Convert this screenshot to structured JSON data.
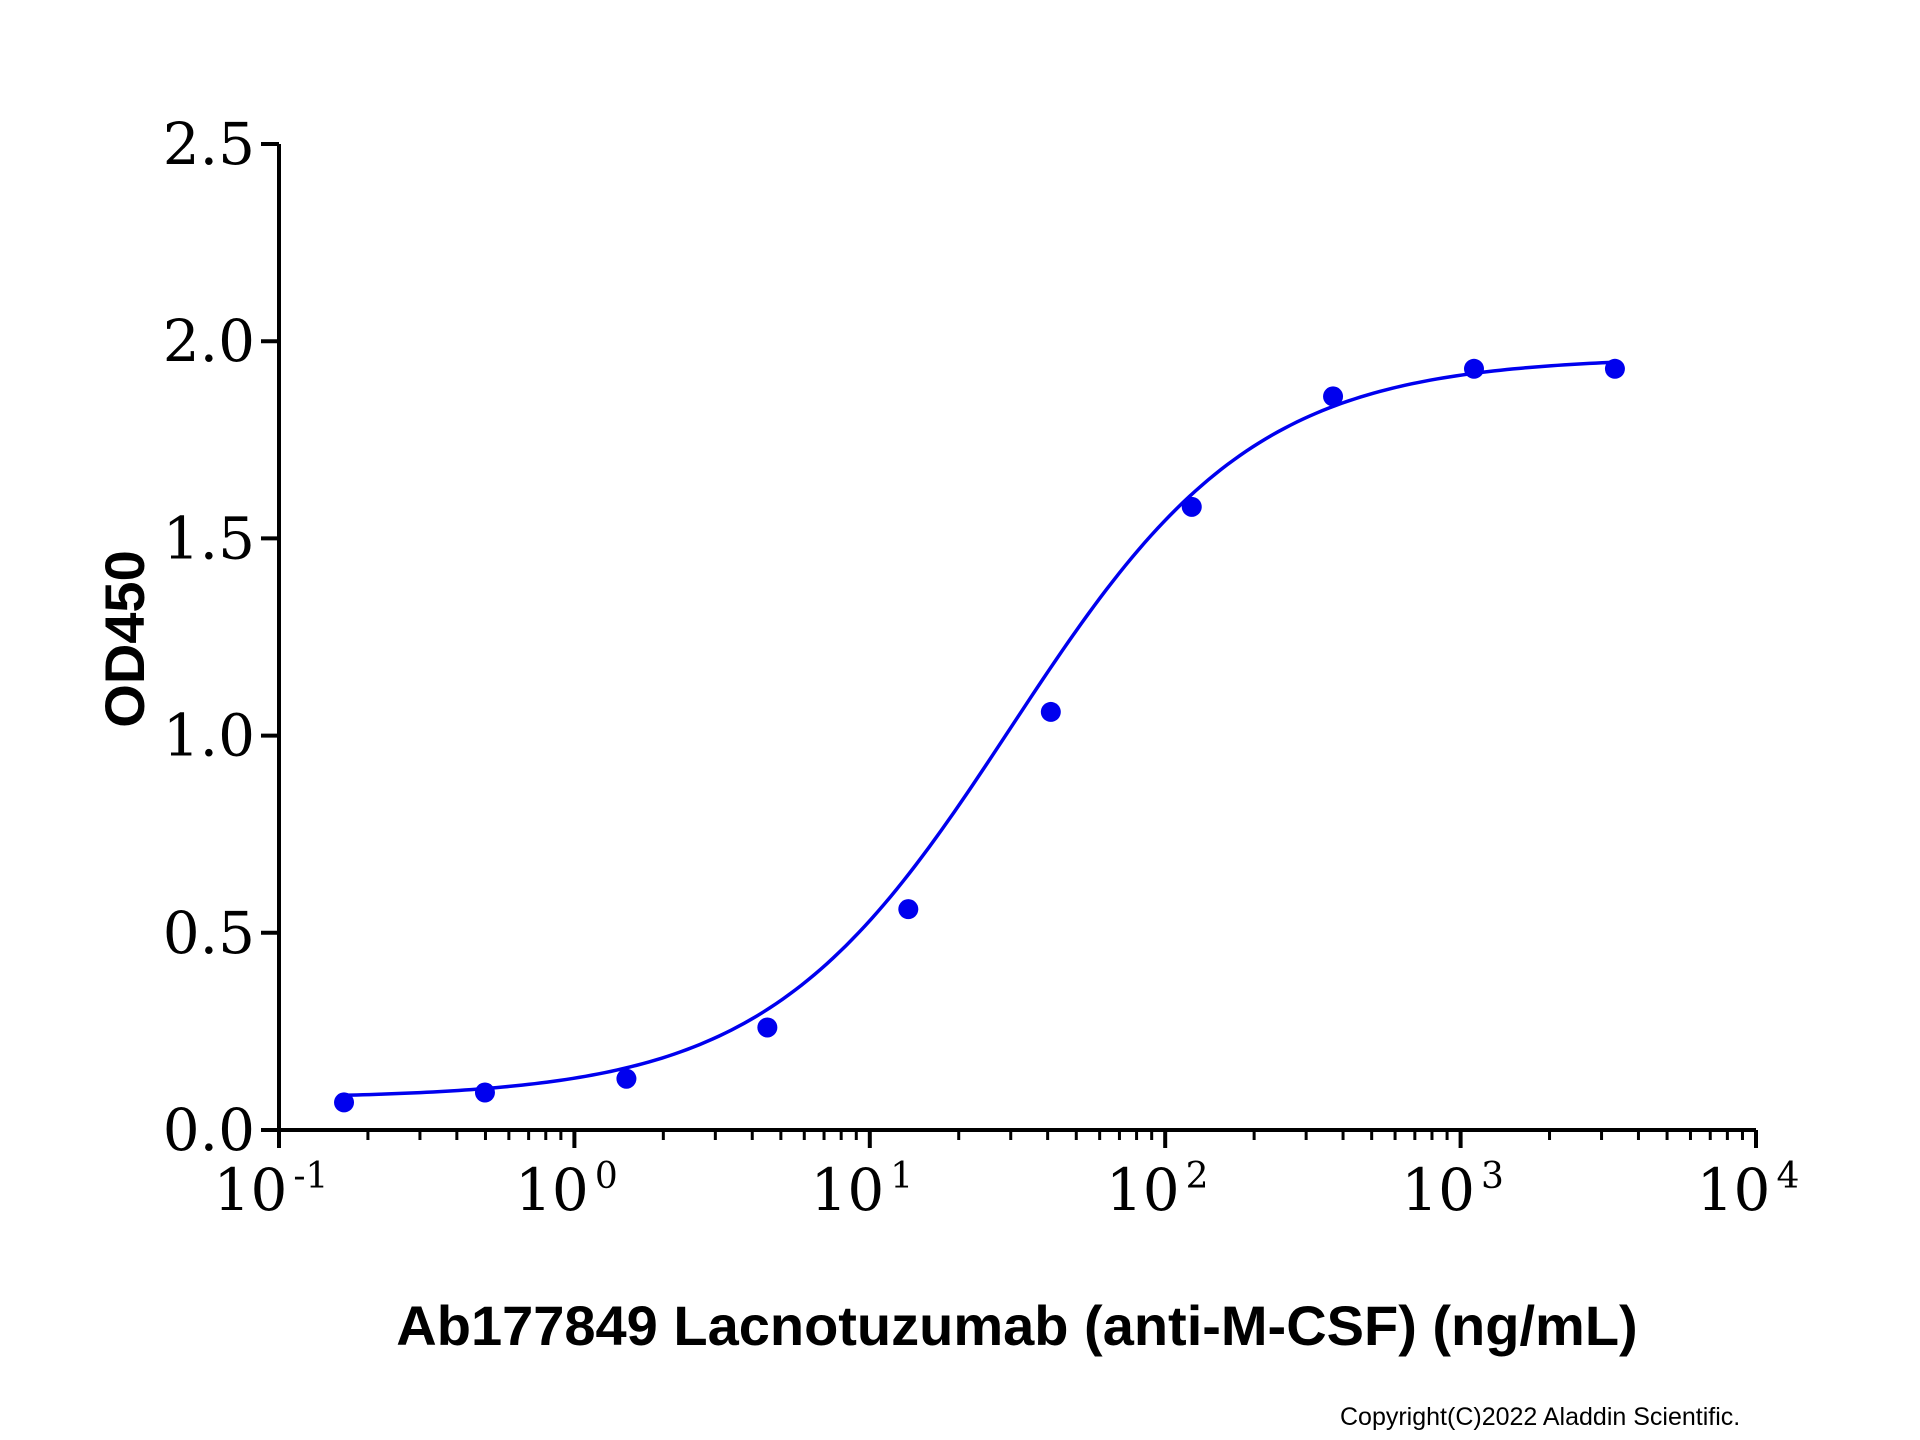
{
  "chart_data": {
    "type": "scatter",
    "xlabel": "Ab177849 Lacnotuzumab (anti-M-CSF) (ng/mL)",
    "ylabel": "OD450",
    "xscale": "log",
    "xlim": [
      0.1,
      10000
    ],
    "ylim": [
      0,
      2.5
    ],
    "x_ticks": [
      {
        "base": "10",
        "exp": "-1"
      },
      {
        "base": "10",
        "exp": "0"
      },
      {
        "base": "10",
        "exp": "1"
      },
      {
        "base": "10",
        "exp": "2"
      },
      {
        "base": "10",
        "exp": "3"
      },
      {
        "base": "10",
        "exp": "4"
      }
    ],
    "y_ticks": [
      "0.0",
      "0.5",
      "1.0",
      "1.5",
      "2.0",
      "2.5"
    ],
    "grid": false,
    "color": "#0000ee",
    "series": [
      {
        "x": [
          0.166,
          0.498,
          1.5,
          4.5,
          13.5,
          41,
          123,
          370,
          1110,
          3330
        ],
        "y": [
          0.07,
          0.095,
          0.13,
          0.26,
          0.56,
          1.06,
          1.58,
          1.86,
          1.93,
          1.93
        ]
      }
    ],
    "fit_curve": {
      "model": "4PL",
      "bottom": 0.08,
      "top": 1.96,
      "ec50": 30,
      "hill": 1.05
    }
  },
  "copyright": "Copyright(C)2022 Aladdin Scientific."
}
